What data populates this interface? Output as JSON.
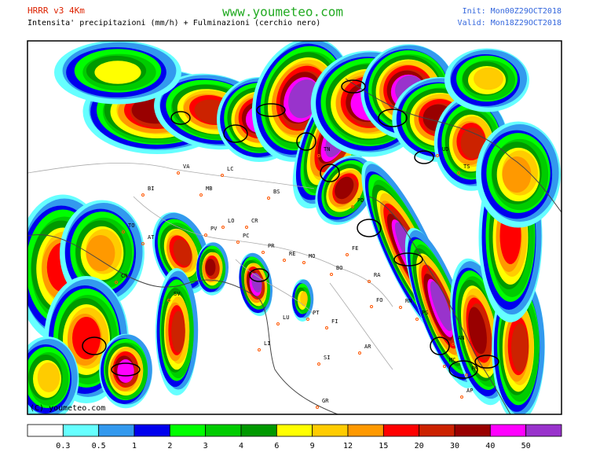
{
  "header": {
    "model": "HRRR v3 4Km",
    "site": "www.youmeteo.com",
    "init": "Init: Mon00Z29OCT2018",
    "subtitle": "Intensita' precipitazioni (mm/h) + Fulminazioni (cerchio nero)",
    "valid": "Valid: Mon18Z29OCT2018"
  },
  "map": {
    "cities": [
      "BI",
      "TO",
      "AT",
      "CN",
      "SV",
      "VA",
      "LC",
      "MB",
      "LO",
      "PV",
      "PC",
      "CR",
      "BS",
      "PR",
      "RE",
      "MO",
      "BO",
      "FE",
      "RA",
      "FO",
      "RN",
      "PS",
      "AN",
      "MC",
      "FM",
      "AP",
      "LU",
      "PT",
      "FI",
      "AR",
      "SI",
      "GR",
      "LI",
      "TN",
      "PD",
      "UD",
      "TS"
    ],
    "copyright": "(C) youmeteo.com"
  },
  "legend": {
    "colors": [
      "#ffffff",
      "#66ffff",
      "#3399ee",
      "#0000ee",
      "#00ff00",
      "#00cc00",
      "#009900",
      "#ffff00",
      "#ffcc00",
      "#ff9900",
      "#ff0000",
      "#cc2200",
      "#990000",
      "#ff00ff",
      "#9933cc"
    ],
    "ticks": [
      0.3,
      0.5,
      1,
      2,
      3,
      4,
      6,
      9,
      12,
      15,
      20,
      30,
      40,
      50
    ]
  }
}
